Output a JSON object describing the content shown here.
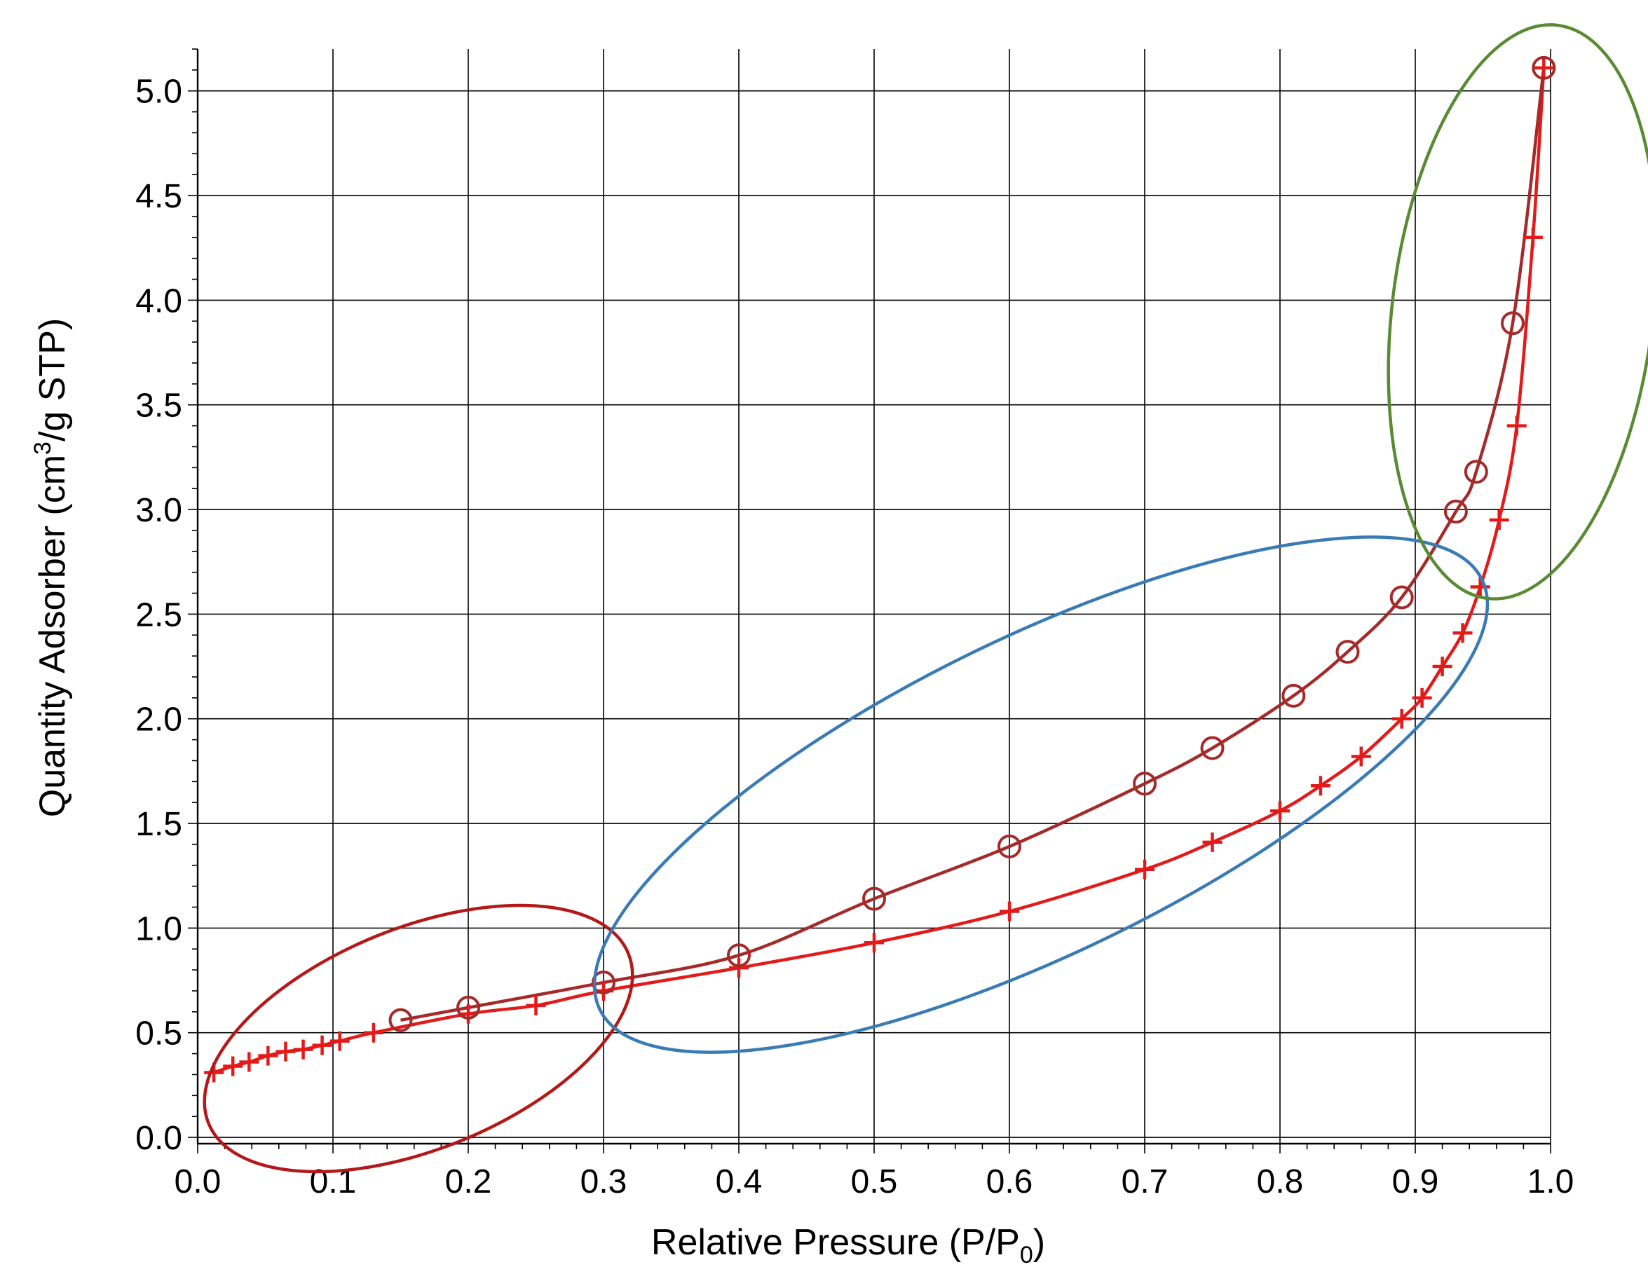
{
  "chart_data": {
    "type": "line",
    "title": "",
    "xlabel_main": "Relative Pressure (P/P",
    "xlabel_sub": "0",
    "xlabel_end": ")",
    "ylabel_main": "Quantity Adsorber (cm",
    "ylabel_sup": "3",
    "ylabel_end": "/g STP)",
    "xlim": [
      0.0,
      1.0
    ],
    "ylim": [
      0.0,
      5.0
    ],
    "x_ticks": [
      "0.0",
      "0.1",
      "0.2",
      "0.3",
      "0.4",
      "0.5",
      "0.6",
      "0.7",
      "0.8",
      "0.9",
      "1.0"
    ],
    "y_ticks": [
      "0.0",
      "0.5",
      "1.0",
      "1.5",
      "2.0",
      "2.5",
      "3.0",
      "3.5",
      "4.0",
      "4.5",
      "5.0"
    ],
    "grid": true,
    "legend": "none",
    "series": [
      {
        "marker": "plus",
        "color": "#e41a1a",
        "x": [
          0.012,
          0.026,
          0.038,
          0.052,
          0.065,
          0.078,
          0.092,
          0.105,
          0.13,
          0.2,
          0.25,
          0.3,
          0.4,
          0.5,
          0.6,
          0.7,
          0.75,
          0.8,
          0.83,
          0.86,
          0.89,
          0.905,
          0.92,
          0.935,
          0.948,
          0.962,
          0.975,
          0.987,
          0.995
        ],
        "y": [
          0.31,
          0.34,
          0.36,
          0.39,
          0.41,
          0.42,
          0.44,
          0.46,
          0.5,
          0.59,
          0.63,
          0.7,
          0.81,
          0.93,
          1.08,
          1.28,
          1.41,
          1.56,
          1.68,
          1.82,
          2.0,
          2.1,
          2.25,
          2.41,
          2.63,
          2.95,
          3.4,
          4.3,
          5.11
        ]
      },
      {
        "marker": "circle",
        "color": "#a52a2a",
        "x": [
          0.15,
          0.2,
          0.3,
          0.4,
          0.5,
          0.6,
          0.7,
          0.75,
          0.81,
          0.85,
          0.89,
          0.93,
          0.945,
          0.972,
          0.995
        ],
        "y": [
          0.56,
          0.62,
          0.74,
          0.87,
          1.14,
          1.39,
          1.69,
          1.86,
          2.11,
          2.32,
          2.58,
          2.99,
          3.18,
          3.89,
          5.11
        ]
      }
    ],
    "annotations": [
      {
        "shape": "ellipse",
        "color": "#b41818",
        "covers": "low pressure region"
      },
      {
        "shape": "ellipse",
        "color": "#3a7bb5",
        "covers": "mid pressure region"
      },
      {
        "shape": "ellipse",
        "color": "#5a8a34",
        "covers": "high pressure region"
      }
    ]
  }
}
